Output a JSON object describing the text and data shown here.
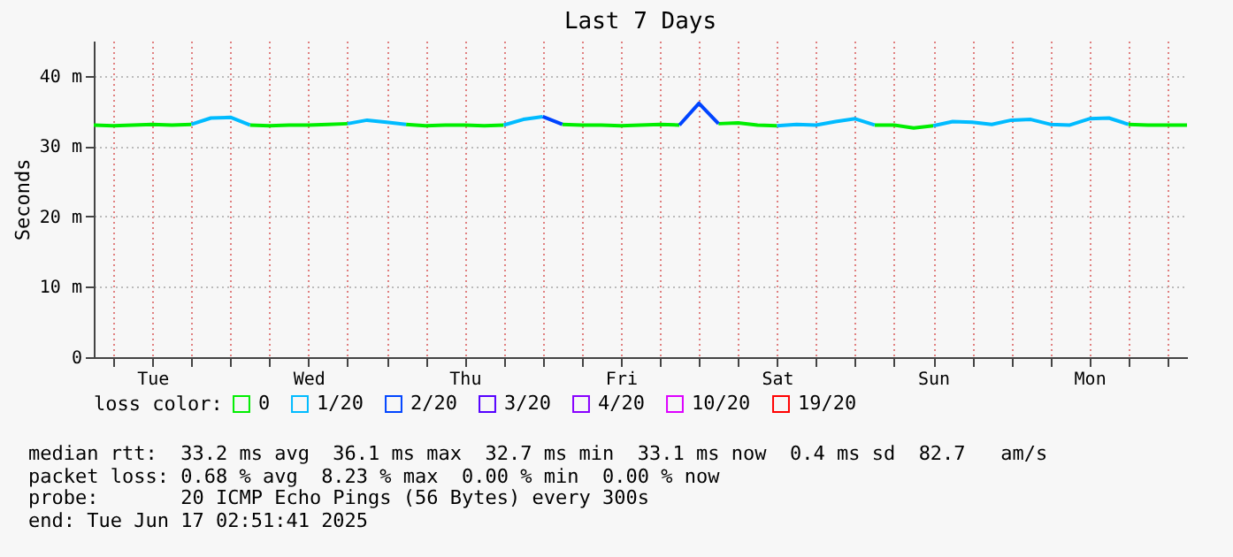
{
  "chart_data": {
    "type": "line",
    "title": "Last 7 Days",
    "ylabel": "Seconds",
    "legend_title": "loss color:",
    "categories": [
      null,
      null,
      null,
      "Tue",
      null,
      null,
      null,
      null,
      null,
      null,
      null,
      "Wed",
      null,
      null,
      null,
      null,
      null,
      null,
      null,
      "Thu",
      null,
      null,
      null,
      null,
      null,
      null,
      null,
      "Fri",
      null,
      null,
      null,
      null,
      null,
      null,
      null,
      "Sat",
      null,
      null,
      null,
      null,
      null,
      null,
      null,
      "Sun",
      null,
      null,
      null,
      null,
      null,
      null,
      null,
      "Mon",
      null,
      null,
      null,
      null,
      null
    ],
    "ylim": [
      0,
      45
    ],
    "yticks": [
      0,
      {
        "value": 10,
        "label": "10 m"
      },
      {
        "value": 20,
        "label": "20 m"
      },
      {
        "value": 30,
        "label": "30 m"
      },
      {
        "value": 40,
        "label": "40 m"
      }
    ],
    "grid": true,
    "legend": "bottom",
    "marker": "none",
    "line_style": "solid",
    "series": [
      {
        "name": "0",
        "color": "#00ee00",
        "values": [
          33.0,
          32.9,
          33.0,
          33.1,
          33.0,
          33.1,
          null,
          null,
          33.0,
          32.9,
          33.0,
          33.0,
          33.1,
          33.2,
          null,
          null,
          33.1,
          32.9,
          33.0,
          33.0,
          32.9,
          33.0,
          null,
          null,
          33.1,
          33.0,
          33.0,
          32.9,
          33.0,
          33.1,
          33.0,
          null,
          33.2,
          33.3,
          33.0,
          32.9,
          null,
          null,
          null,
          null,
          33.0,
          33.0,
          32.6,
          32.9,
          null,
          null,
          null,
          null,
          null,
          null,
          null,
          null,
          null,
          33.1,
          33.0,
          33.0,
          33.0
        ]
      },
      {
        "name": "1/20",
        "color": "#00bbff",
        "values": [
          null,
          null,
          null,
          null,
          null,
          33.1,
          34.0,
          34.1,
          33.0,
          null,
          null,
          null,
          null,
          33.2,
          33.7,
          33.4,
          33.1,
          null,
          null,
          null,
          null,
          33.0,
          33.8,
          34.2,
          null,
          null,
          null,
          null,
          null,
          null,
          null,
          null,
          null,
          null,
          null,
          32.9,
          33.1,
          33.0,
          33.5,
          33.9,
          33.0,
          null,
          null,
          32.9,
          33.5,
          33.4,
          33.1,
          33.7,
          33.8,
          33.1,
          33.0,
          33.9,
          34.0,
          33.1,
          null,
          null,
          null
        ]
      },
      {
        "name": "2/20",
        "color": "#0044ff",
        "values": [
          null,
          null,
          null,
          null,
          null,
          null,
          null,
          null,
          null,
          null,
          null,
          null,
          null,
          null,
          null,
          null,
          null,
          null,
          null,
          null,
          null,
          null,
          null,
          34.2,
          33.1,
          null,
          null,
          null,
          null,
          null,
          33.0,
          36.1,
          33.2,
          null,
          null,
          null,
          null,
          null,
          null,
          null,
          null,
          null,
          null,
          null,
          null,
          null,
          null,
          null,
          null,
          null,
          null,
          null,
          null,
          null,
          null,
          null,
          null
        ]
      },
      {
        "name": "3/20",
        "color": "#5500ff",
        "values": [
          null,
          null,
          null,
          null,
          null,
          null,
          null,
          null,
          null,
          null,
          null,
          null,
          null,
          null,
          null,
          null,
          null,
          null,
          null,
          null,
          null,
          null,
          null,
          null,
          null,
          null,
          null,
          null,
          null,
          null,
          null,
          null,
          null,
          null,
          null,
          null,
          null,
          null,
          null,
          null,
          null,
          null,
          null,
          null,
          null,
          null,
          null,
          null,
          null,
          null,
          null,
          null,
          null,
          null,
          null,
          null,
          null
        ]
      },
      {
        "name": "4/20",
        "color": "#8800ff",
        "values": [
          null,
          null,
          null,
          null,
          null,
          null,
          null,
          null,
          null,
          null,
          null,
          null,
          null,
          null,
          null,
          null,
          null,
          null,
          null,
          null,
          null,
          null,
          null,
          null,
          null,
          null,
          null,
          null,
          null,
          null,
          null,
          null,
          null,
          null,
          null,
          null,
          null,
          null,
          null,
          null,
          null,
          null,
          null,
          null,
          null,
          null,
          null,
          null,
          null,
          null,
          null,
          null,
          null,
          null,
          null,
          null,
          null
        ]
      },
      {
        "name": "10/20",
        "color": "#dd00ff",
        "values": [
          null,
          null,
          null,
          null,
          null,
          null,
          null,
          null,
          null,
          null,
          null,
          null,
          null,
          null,
          null,
          null,
          null,
          null,
          null,
          null,
          null,
          null,
          null,
          null,
          null,
          null,
          null,
          null,
          null,
          null,
          null,
          null,
          null,
          null,
          null,
          null,
          null,
          null,
          null,
          null,
          null,
          null,
          null,
          null,
          null,
          null,
          null,
          null,
          null,
          null,
          null,
          null,
          null,
          null,
          null,
          null,
          null
        ]
      },
      {
        "name": "19/20",
        "color": "#ff0000",
        "values": [
          null,
          null,
          null,
          null,
          null,
          null,
          null,
          null,
          null,
          null,
          null,
          null,
          null,
          null,
          null,
          null,
          null,
          null,
          null,
          null,
          null,
          null,
          null,
          null,
          null,
          null,
          null,
          null,
          null,
          null,
          null,
          null,
          null,
          null,
          null,
          null,
          null,
          null,
          null,
          null,
          null,
          null,
          null,
          null,
          null,
          null,
          null,
          null,
          null,
          null,
          null,
          null,
          null,
          null,
          null,
          null,
          null
        ]
      }
    ],
    "annotations": [
      "median rtt:  33.2 ms avg  36.1 ms max  32.7 ms min  33.1 ms now  0.4 ms sd  82.7   am/s",
      "packet loss: 0.68 % avg  8.23 % max  0.00 % min  0.00 % now",
      "probe:       20 ICMP Echo Pings (56 Bytes) every 300s",
      "end: Tue Jun 17 02:51:41 2025"
    ]
  }
}
